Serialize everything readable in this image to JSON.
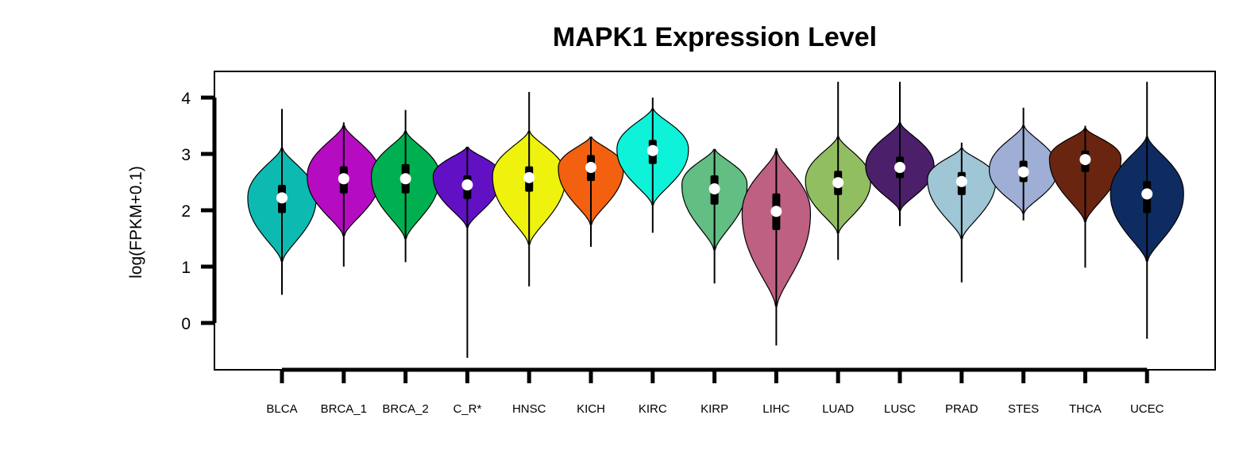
{
  "chart_data": {
    "type": "violin",
    "title": "MAPK1 Expression Level",
    "xlabel": "",
    "ylabel": "log(FPKM+0.1)",
    "ylim": [
      -0.8,
      4.5
    ],
    "yticks": [
      0,
      1,
      2,
      3,
      4
    ],
    "grid": false,
    "categories": [
      "BLCA",
      "BRCA_1",
      "BRCA_2",
      "C_R*",
      "HNSC",
      "KICH",
      "KIRC",
      "KIRP",
      "LIHC",
      "LUAD",
      "LUSC",
      "PRAD",
      "STES",
      "THCA",
      "UCEC"
    ],
    "colors": [
      "#0dbab1",
      "#b60cc1",
      "#00b050",
      "#6210c4",
      "#eef20c",
      "#f26010",
      "#0ef2da",
      "#62be82",
      "#be6082",
      "#92be62",
      "#4b1f69",
      "#9ec6d4",
      "#9eaed4",
      "#6a2510",
      "#0f2c62"
    ],
    "series": [
      {
        "name": "BLCA",
        "min": 0.5,
        "q1": 1.95,
        "median": 2.22,
        "q3": 2.45,
        "max": 3.8,
        "whisker_low": 1.1,
        "whisker_high": 3.1,
        "widest_at": 2.22,
        "max_halfwidth": 0.42
      },
      {
        "name": "BRCA_1",
        "min": 1.0,
        "q1": 2.3,
        "median": 2.56,
        "q3": 2.78,
        "max": 3.56,
        "whisker_low": 1.55,
        "whisker_high": 3.5,
        "widest_at": 2.6,
        "max_halfwidth": 0.45
      },
      {
        "name": "BRCA_2",
        "min": 1.08,
        "q1": 2.3,
        "median": 2.56,
        "q3": 2.82,
        "max": 3.78,
        "whisker_low": 1.5,
        "whisker_high": 3.4,
        "widest_at": 2.6,
        "max_halfwidth": 0.42
      },
      {
        "name": "C_R*",
        "min": -0.62,
        "q1": 2.2,
        "median": 2.45,
        "q3": 2.62,
        "max": 3.12,
        "whisker_low": 1.7,
        "whisker_high": 3.12,
        "widest_at": 2.6,
        "max_halfwidth": 0.42
      },
      {
        "name": "HNSC",
        "min": 0.65,
        "q1": 2.33,
        "median": 2.58,
        "q3": 2.78,
        "max": 4.1,
        "whisker_low": 1.4,
        "whisker_high": 3.4,
        "widest_at": 2.6,
        "max_halfwidth": 0.45
      },
      {
        "name": "KICH",
        "min": 1.35,
        "q1": 2.52,
        "median": 2.76,
        "q3": 2.98,
        "max": 3.3,
        "whisker_low": 1.75,
        "whisker_high": 3.3,
        "widest_at": 2.75,
        "max_halfwidth": 0.4
      },
      {
        "name": "KIRC",
        "min": 1.6,
        "q1": 2.82,
        "median": 3.06,
        "q3": 3.25,
        "max": 4.0,
        "whisker_low": 2.1,
        "whisker_high": 3.8,
        "widest_at": 3.08,
        "max_halfwidth": 0.44
      },
      {
        "name": "KIRP",
        "min": 0.7,
        "q1": 2.1,
        "median": 2.38,
        "q3": 2.62,
        "max": 3.08,
        "whisker_low": 1.3,
        "whisker_high": 3.08,
        "widest_at": 2.45,
        "max_halfwidth": 0.4
      },
      {
        "name": "LIHC",
        "min": -0.4,
        "q1": 1.65,
        "median": 1.98,
        "q3": 2.3,
        "max": 3.1,
        "whisker_low": 0.3,
        "whisker_high": 3.05,
        "widest_at": 1.95,
        "max_halfwidth": 0.42
      },
      {
        "name": "LUAD",
        "min": 1.12,
        "q1": 2.27,
        "median": 2.49,
        "q3": 2.7,
        "max": 4.28,
        "whisker_low": 1.6,
        "whisker_high": 3.3,
        "widest_at": 2.52,
        "max_halfwidth": 0.4
      },
      {
        "name": "LUSC",
        "min": 1.72,
        "q1": 2.57,
        "median": 2.76,
        "q3": 2.95,
        "max": 4.28,
        "whisker_low": 2.0,
        "whisker_high": 3.55,
        "widest_at": 2.78,
        "max_halfwidth": 0.42
      },
      {
        "name": "PRAD",
        "min": 0.72,
        "q1": 2.27,
        "median": 2.51,
        "q3": 2.68,
        "max": 3.2,
        "whisker_low": 1.5,
        "whisker_high": 3.1,
        "widest_at": 2.55,
        "max_halfwidth": 0.42
      },
      {
        "name": "STES",
        "min": 1.82,
        "q1": 2.5,
        "median": 2.68,
        "q3": 2.88,
        "max": 3.82,
        "whisker_low": 1.95,
        "whisker_high": 3.5,
        "widest_at": 2.72,
        "max_halfwidth": 0.42
      },
      {
        "name": "THCA",
        "min": 0.98,
        "q1": 2.68,
        "median": 2.9,
        "q3": 3.06,
        "max": 3.5,
        "whisker_low": 1.8,
        "whisker_high": 3.45,
        "widest_at": 2.92,
        "max_halfwidth": 0.44
      },
      {
        "name": "UCEC",
        "min": -0.28,
        "q1": 1.95,
        "median": 2.29,
        "q3": 2.52,
        "max": 4.28,
        "whisker_low": 1.1,
        "whisker_high": 3.3,
        "widest_at": 2.3,
        "max_halfwidth": 0.45
      }
    ]
  }
}
